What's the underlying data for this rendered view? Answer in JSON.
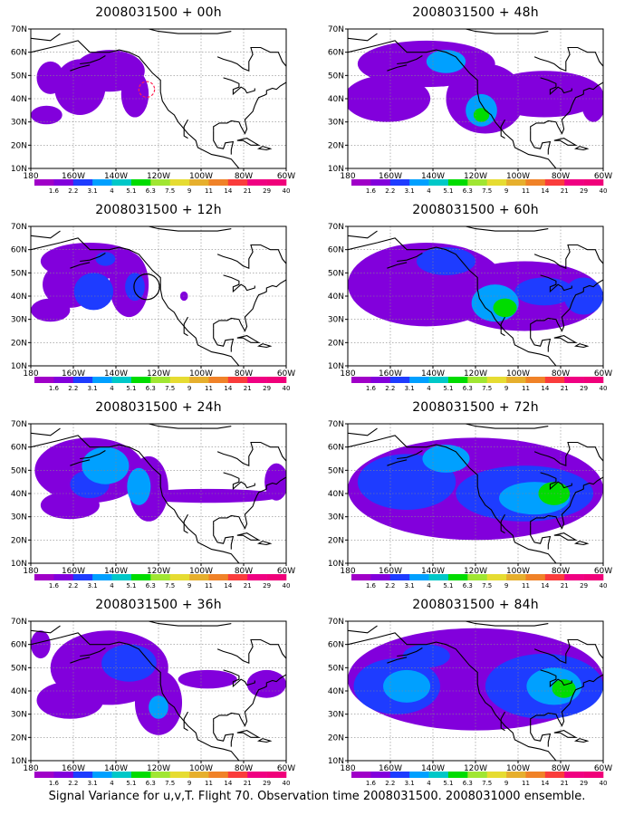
{
  "figure": {
    "caption": "Signal Variance for u,v,T. Flight 70. Observation time 2008031500. 2008031000 ensemble."
  },
  "colorbar": {
    "levels": [
      "1.6",
      "2.2",
      "3.1",
      "4",
      "5.1",
      "6.3",
      "7.5",
      "9",
      "11",
      "14",
      "21",
      "29",
      "40"
    ],
    "colors": [
      "#a000c8",
      "#8200dc",
      "#1e3cff",
      "#00a0ff",
      "#00c8c8",
      "#00dc00",
      "#a0e632",
      "#e6dc32",
      "#e6af2d",
      "#f08228",
      "#fa3c3c",
      "#f00082",
      "#f0007a"
    ]
  },
  "chart_data": [
    {
      "type": "heatmap",
      "title": "2008031500 + 00h",
      "xticks": [
        "180",
        "160W",
        "140W",
        "120W",
        "100W",
        "80W",
        "60W"
      ],
      "yticks": [
        "10N",
        "20N",
        "30N",
        "40N",
        "50N",
        "60N",
        "70N"
      ],
      "xlim": [
        -190,
        -60
      ],
      "ylim": [
        10,
        70
      ],
      "grid": true,
      "blobs": [
        {
          "lon": -165,
          "lat": 45,
          "rx": 13,
          "ry": 12,
          "level": 1
        },
        {
          "lon": -150,
          "lat": 52,
          "rx": 18,
          "ry": 9,
          "level": 1
        },
        {
          "lon": -182,
          "lat": 33,
          "rx": 8,
          "ry": 4,
          "level": 1
        },
        {
          "lon": -137,
          "lat": 42,
          "rx": 7,
          "ry": 10,
          "level": 1
        },
        {
          "lon": -180,
          "lat": 49,
          "rx": 7,
          "ry": 7,
          "level": 1
        }
      ],
      "annotations": [
        {
          "shape": "dashed-circle",
          "lon": -131,
          "lat": 44,
          "r_deg": 4,
          "color": "#ff2050"
        }
      ]
    },
    {
      "type": "heatmap",
      "title": "2008031500 + 12h",
      "xticks": [
        "180",
        "160W",
        "140W",
        "120W",
        "100W",
        "80W",
        "60W"
      ],
      "yticks": [
        "10N",
        "20N",
        "30N",
        "40N",
        "50N",
        "60N",
        "70N"
      ],
      "xlim": [
        -190,
        -60
      ],
      "ylim": [
        10,
        70
      ],
      "grid": true,
      "blobs": [
        {
          "lon": -170,
          "lat": 45,
          "rx": 14,
          "ry": 10,
          "level": 1
        },
        {
          "lon": -160,
          "lat": 55,
          "rx": 25,
          "ry": 8,
          "level": 1
        },
        {
          "lon": -140,
          "lat": 45,
          "rx": 10,
          "ry": 14,
          "level": 1
        },
        {
          "lon": -180,
          "lat": 34,
          "rx": 10,
          "ry": 5,
          "level": 1
        },
        {
          "lon": -158,
          "lat": 42,
          "rx": 10,
          "ry": 8,
          "level": 2
        },
        {
          "lon": -137,
          "lat": 44,
          "rx": 5,
          "ry": 6,
          "level": 2
        },
        {
          "lon": -152,
          "lat": 56,
          "rx": 5,
          "ry": 3,
          "level": 2
        },
        {
          "lon": -112,
          "lat": 40,
          "rx": 2,
          "ry": 2,
          "level": 1
        }
      ],
      "annotations": [
        {
          "shape": "circle",
          "lon": -131,
          "lat": 44,
          "r_deg": 6.5,
          "color": "#000000"
        }
      ]
    },
    {
      "type": "heatmap",
      "title": "2008031500 + 24h",
      "xticks": [
        "180",
        "160W",
        "140W",
        "120W",
        "100W",
        "80W",
        "60W"
      ],
      "yticks": [
        "10N",
        "20N",
        "30N",
        "40N",
        "50N",
        "60N",
        "70N"
      ],
      "xlim": [
        -190,
        -60
      ],
      "ylim": [
        10,
        70
      ],
      "grid": true,
      "blobs": [
        {
          "lon": -160,
          "lat": 50,
          "rx": 28,
          "ry": 14,
          "level": 1
        },
        {
          "lon": -170,
          "lat": 35,
          "rx": 15,
          "ry": 6,
          "level": 1
        },
        {
          "lon": -130,
          "lat": 42,
          "rx": 10,
          "ry": 14,
          "level": 1
        },
        {
          "lon": -100,
          "lat": 39,
          "rx": 38,
          "ry": 3,
          "level": 1
        },
        {
          "lon": -152,
          "lat": 52,
          "rx": 12,
          "ry": 8,
          "level": 3
        },
        {
          "lon": -135,
          "lat": 43,
          "rx": 6,
          "ry": 8,
          "level": 3
        },
        {
          "lon": -65,
          "lat": 45,
          "rx": 6,
          "ry": 8,
          "level": 1
        },
        {
          "lon": -160,
          "lat": 44,
          "rx": 10,
          "ry": 6,
          "level": 2
        }
      ],
      "annotations": []
    },
    {
      "type": "heatmap",
      "title": "2008031500 + 36h",
      "xticks": [
        "180",
        "160W",
        "140W",
        "120W",
        "100W",
        "80W",
        "60W"
      ],
      "yticks": [
        "10N",
        "20N",
        "30N",
        "40N",
        "50N",
        "60N",
        "70N"
      ],
      "xlim": [
        -190,
        -60
      ],
      "ylim": [
        10,
        70
      ],
      "grid": true,
      "blobs": [
        {
          "lon": -150,
          "lat": 50,
          "rx": 30,
          "ry": 16,
          "level": 1
        },
        {
          "lon": -170,
          "lat": 36,
          "rx": 17,
          "ry": 8,
          "level": 1
        },
        {
          "lon": -125,
          "lat": 35,
          "rx": 12,
          "ry": 14,
          "level": 1
        },
        {
          "lon": -100,
          "lat": 45,
          "rx": 15,
          "ry": 4,
          "level": 1
        },
        {
          "lon": -70,
          "lat": 43,
          "rx": 10,
          "ry": 6,
          "level": 1
        },
        {
          "lon": -140,
          "lat": 52,
          "rx": 14,
          "ry": 8,
          "level": 2
        },
        {
          "lon": -125,
          "lat": 33,
          "rx": 5,
          "ry": 5,
          "level": 3
        },
        {
          "lon": -185,
          "lat": 60,
          "rx": 5,
          "ry": 6,
          "level": 1
        }
      ],
      "annotations": []
    },
    {
      "type": "heatmap",
      "title": "2008031500 + 48h",
      "xticks": [
        "180",
        "160W",
        "140W",
        "120W",
        "100W",
        "80W",
        "60W"
      ],
      "yticks": [
        "10N",
        "20N",
        "30N",
        "40N",
        "50N",
        "60N",
        "70N"
      ],
      "xlim": [
        -190,
        -60
      ],
      "ylim": [
        10,
        70
      ],
      "grid": true,
      "blobs": [
        {
          "lon": -150,
          "lat": 55,
          "rx": 35,
          "ry": 10,
          "level": 1
        },
        {
          "lon": -170,
          "lat": 40,
          "rx": 22,
          "ry": 10,
          "level": 1
        },
        {
          "lon": -120,
          "lat": 40,
          "rx": 20,
          "ry": 15,
          "level": 1
        },
        {
          "lon": -90,
          "lat": 42,
          "rx": 30,
          "ry": 10,
          "level": 1
        },
        {
          "lon": -140,
          "lat": 56,
          "rx": 10,
          "ry": 5,
          "level": 3
        },
        {
          "lon": -122,
          "lat": 35,
          "rx": 8,
          "ry": 7,
          "level": 3
        },
        {
          "lon": -122,
          "lat": 33,
          "rx": 4,
          "ry": 3,
          "level": 5
        },
        {
          "lon": -65,
          "lat": 38,
          "rx": 6,
          "ry": 8,
          "level": 1
        }
      ],
      "annotations": []
    },
    {
      "type": "heatmap",
      "title": "2008031500 + 60h",
      "xticks": [
        "180",
        "160W",
        "140W",
        "120W",
        "100W",
        "80W",
        "60W"
      ],
      "yticks": [
        "10N",
        "20N",
        "30N",
        "40N",
        "50N",
        "60N",
        "70N"
      ],
      "xlim": [
        -190,
        -60
      ],
      "ylim": [
        10,
        70
      ],
      "grid": true,
      "blobs": [
        {
          "lon": -150,
          "lat": 45,
          "rx": 40,
          "ry": 18,
          "level": 1
        },
        {
          "lon": -100,
          "lat": 40,
          "rx": 40,
          "ry": 15,
          "level": 1
        },
        {
          "lon": -140,
          "lat": 55,
          "rx": 15,
          "ry": 6,
          "level": 2
        },
        {
          "lon": -115,
          "lat": 37,
          "rx": 12,
          "ry": 8,
          "level": 3
        },
        {
          "lon": -110,
          "lat": 35,
          "rx": 6,
          "ry": 4,
          "level": 5
        },
        {
          "lon": -90,
          "lat": 42,
          "rx": 15,
          "ry": 6,
          "level": 2
        },
        {
          "lon": -70,
          "lat": 40,
          "rx": 10,
          "ry": 8,
          "level": 2
        }
      ],
      "annotations": []
    },
    {
      "type": "heatmap",
      "title": "2008031500 + 72h",
      "xticks": [
        "180",
        "160W",
        "140W",
        "120W",
        "100W",
        "80W",
        "60W"
      ],
      "yticks": [
        "10N",
        "20N",
        "30N",
        "40N",
        "50N",
        "60N",
        "70N"
      ],
      "xlim": [
        -190,
        -60
      ],
      "ylim": [
        10,
        70
      ],
      "grid": true,
      "blobs": [
        {
          "lon": -125,
          "lat": 42,
          "rx": 65,
          "ry": 22,
          "level": 1
        },
        {
          "lon": -160,
          "lat": 45,
          "rx": 25,
          "ry": 12,
          "level": 2
        },
        {
          "lon": -100,
          "lat": 40,
          "rx": 35,
          "ry": 12,
          "level": 2
        },
        {
          "lon": -95,
          "lat": 38,
          "rx": 18,
          "ry": 7,
          "level": 3
        },
        {
          "lon": -85,
          "lat": 40,
          "rx": 8,
          "ry": 5,
          "level": 5
        },
        {
          "lon": -140,
          "lat": 55,
          "rx": 12,
          "ry": 6,
          "level": 3
        }
      ],
      "annotations": []
    },
    {
      "type": "heatmap",
      "title": "2008031500 + 84h",
      "xticks": [
        "180",
        "160W",
        "140W",
        "120W",
        "100W",
        "80W",
        "60W"
      ],
      "yticks": [
        "10N",
        "20N",
        "30N",
        "40N",
        "50N",
        "60N",
        "70N"
      ],
      "xlim": [
        -190,
        -60
      ],
      "ylim": [
        10,
        70
      ],
      "grid": true,
      "blobs": [
        {
          "lon": -125,
          "lat": 45,
          "rx": 65,
          "ry": 22,
          "level": 1
        },
        {
          "lon": -165,
          "lat": 42,
          "rx": 22,
          "ry": 12,
          "level": 2
        },
        {
          "lon": -90,
          "lat": 42,
          "rx": 30,
          "ry": 14,
          "level": 2
        },
        {
          "lon": -160,
          "lat": 42,
          "rx": 12,
          "ry": 7,
          "level": 3
        },
        {
          "lon": -85,
          "lat": 42,
          "rx": 14,
          "ry": 8,
          "level": 3
        },
        {
          "lon": -80,
          "lat": 41,
          "rx": 6,
          "ry": 4,
          "level": 5
        },
        {
          "lon": -150,
          "lat": 55,
          "rx": 12,
          "ry": 5,
          "level": 2
        }
      ],
      "annotations": []
    }
  ]
}
